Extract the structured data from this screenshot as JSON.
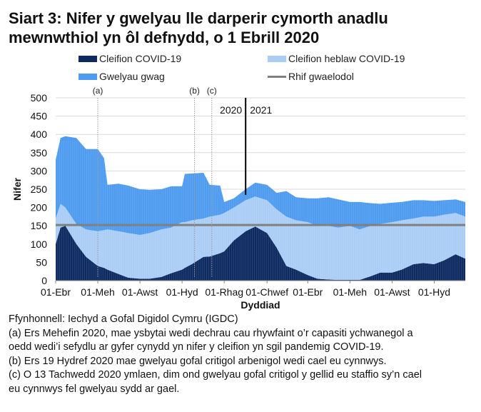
{
  "title": "Siart 3: Nifer y gwelyau lle darperir cymorth anadlu mewnwthiol yn ôl defnydd, o 1 Ebrill 2020",
  "legend": [
    {
      "label": "Cleifion COVID-19",
      "color": "#0d2b61"
    },
    {
      "label": "Cleifion heblaw COVID-19",
      "color": "#aacdf6"
    },
    {
      "label": "Gwelyau gwag",
      "color": "#4e9bef"
    },
    {
      "label": "Rhif gwaelodol",
      "color": "#808080"
    }
  ],
  "chart_data": {
    "type": "area",
    "stacked": true,
    "xlabel": "Dyddiad",
    "ylabel": "Nifer",
    "ylim": [
      0,
      500
    ],
    "yticks": [
      0,
      50,
      100,
      150,
      200,
      250,
      300,
      350,
      400,
      450,
      500
    ],
    "xlim": [
      "2020-04-01",
      "2021-11-15"
    ],
    "xticks": [
      {
        "date": "2020-04-01",
        "label": "01-Ebr"
      },
      {
        "date": "2020-06-01",
        "label": "01-Meh"
      },
      {
        "date": "2020-08-01",
        "label": "01-Awst"
      },
      {
        "date": "2020-10-01",
        "label": "01-Hyd"
      },
      {
        "date": "2020-12-01",
        "label": "01-Rhag"
      },
      {
        "date": "2021-02-01",
        "label": "01-Chwef"
      },
      {
        "date": "2021-04-01",
        "label": "01-Ebr"
      },
      {
        "date": "2021-06-01",
        "label": "01-Meh"
      },
      {
        "date": "2021-08-01",
        "label": "01-Awst"
      },
      {
        "date": "2021-10-01",
        "label": "01-Hyd"
      }
    ],
    "grid": true,
    "legend_position": "top",
    "baseline": {
      "name": "Rhif gwaelodol",
      "value": 152
    },
    "markers": [
      {
        "date": "2020-06-01",
        "label": "(a)"
      },
      {
        "date": "2020-10-19",
        "label": "(b)"
      },
      {
        "date": "2020-11-13",
        "label": "(c)"
      }
    ],
    "year_divider": {
      "date": "2021-01-01",
      "left_label": "2020",
      "right_label": "2021"
    },
    "dates": [
      "2020-04-01",
      "2020-04-08",
      "2020-04-15",
      "2020-05-01",
      "2020-05-15",
      "2020-06-01",
      "2020-06-10",
      "2020-06-15",
      "2020-07-01",
      "2020-07-15",
      "2020-08-01",
      "2020-08-15",
      "2020-09-01",
      "2020-09-15",
      "2020-10-01",
      "2020-10-05",
      "2020-10-15",
      "2020-11-01",
      "2020-11-10",
      "2020-11-25",
      "2020-12-01",
      "2020-12-15",
      "2021-01-01",
      "2021-01-15",
      "2021-02-01",
      "2021-02-15",
      "2021-03-01",
      "2021-03-15",
      "2021-04-01",
      "2021-04-15",
      "2021-05-01",
      "2021-05-15",
      "2021-06-01",
      "2021-06-15",
      "2021-07-01",
      "2021-07-15",
      "2021-08-01",
      "2021-08-15",
      "2021-09-01",
      "2021-09-15",
      "2021-10-01",
      "2021-10-15",
      "2021-11-01",
      "2021-11-15"
    ],
    "series": [
      {
        "name": "Cleifion COVID-19",
        "values": [
          100,
          145,
          150,
          100,
          65,
          40,
          35,
          30,
          18,
          8,
          5,
          5,
          10,
          20,
          30,
          35,
          45,
          65,
          66,
          75,
          80,
          110,
          135,
          148,
          130,
          90,
          40,
          30,
          15,
          5,
          3,
          2,
          2,
          2,
          12,
          22,
          22,
          30,
          45,
          48,
          45,
          55,
          72,
          60
        ]
      },
      {
        "name": "Cleifion heblaw COVID-19",
        "values": [
          70,
          65,
          50,
          55,
          75,
          95,
          103,
          110,
          117,
          122,
          120,
          125,
          130,
          125,
          130,
          125,
          120,
          105,
          109,
          105,
          105,
          90,
          85,
          82,
          90,
          105,
          135,
          135,
          145,
          145,
          147,
          143,
          148,
          138,
          138,
          133,
          138,
          135,
          125,
          127,
          130,
          125,
          113,
          115
        ]
      },
      {
        "name": "Gwelyau gwag",
        "values": [
          160,
          180,
          195,
          235,
          220,
          225,
          197,
          122,
          130,
          130,
          125,
          118,
          110,
          113,
          98,
          132,
          128,
          125,
          87,
          80,
          30,
          25,
          30,
          38,
          42,
          45,
          70,
          63,
          65,
          75,
          78,
          77,
          65,
          75,
          62,
          55,
          53,
          50,
          50,
          45,
          43,
          40,
          37,
          40
        ]
      }
    ]
  },
  "notes": {
    "source": "Ffynhonnell: Iechyd a Gofal Digidol Cymru (IGDC)",
    "a_line1": "(a) Ers Mehefin 2020, mae ysbytai wedi dechrau cau rhywfaint o’r capasiti ychwanegol a",
    "a_line2": "oedd wedi’i sefydlu ar gyfer cynydd yn nifer y cleifion yn sgil pandemig COVID-19.",
    "b": "(b) Ers 19 Hydref 2020 mae gwelyau gofal critigol arbenigol wedi cael eu cynnwys.",
    "c_line1": "(c) O 13 Tachwedd 2020 ymlaen, dim ond gwelyau gofal critigol y gellid eu staffio sy’n cael",
    "c_line2": "eu cynnwys fel gwelyau sydd ar gael."
  }
}
